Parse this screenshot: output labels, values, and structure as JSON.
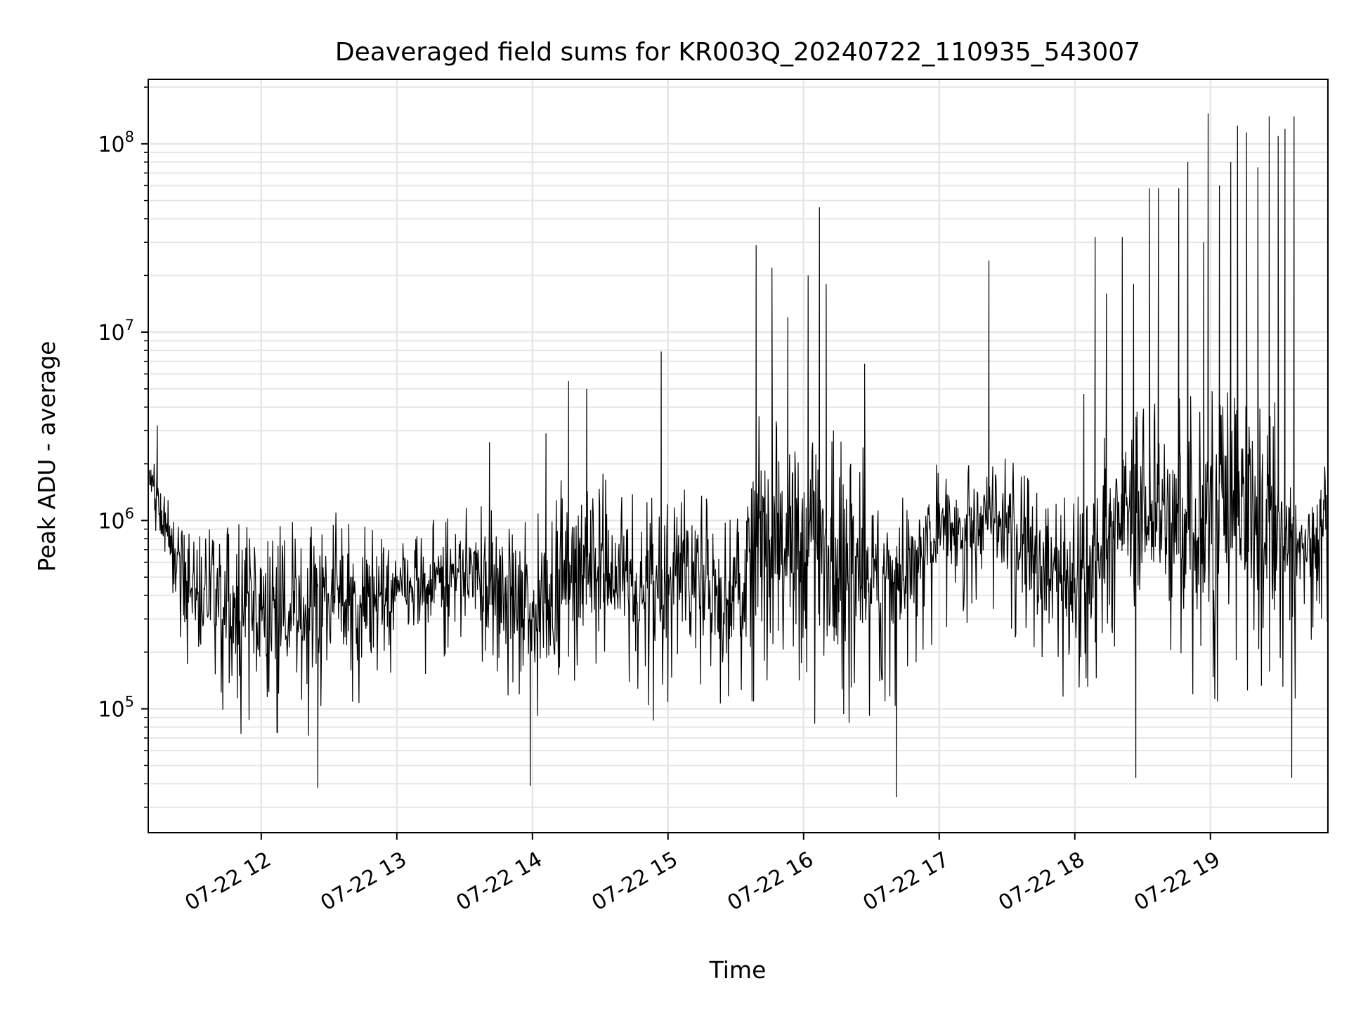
{
  "chart_data": {
    "type": "line",
    "title": "Deaveraged field sums for KR003Q_20240722_110935_543007",
    "xlabel": "Time",
    "ylabel": "Peak ADU - average",
    "yscale": "log",
    "ylim": [
      22000,
      220000000
    ],
    "xlim": [
      "2024-07-22 11:10",
      "2024-07-22 19:52"
    ],
    "grid": "major and minor, light gray",
    "x_ticks": [
      "07-22 12",
      "07-22 13",
      "07-22 14",
      "07-22 15",
      "07-22 16",
      "07-22 17",
      "07-22 18",
      "07-22 19"
    ],
    "y_ticks": [
      {
        "base": "10",
        "exp": "5",
        "value": 100000
      },
      {
        "base": "10",
        "exp": "6",
        "value": 1000000
      },
      {
        "base": "10",
        "exp": "7",
        "value": 10000000
      },
      {
        "base": "10",
        "exp": "8",
        "value": 100000000
      }
    ],
    "line_color": "#000000",
    "series": [
      {
        "x": [
          "2024-07-22 11:10",
          "2024-07-22 11:20",
          "2024-07-22 11:30",
          "2024-07-22 11:40",
          "2024-07-22 11:50",
          "2024-07-22 12:00",
          "2024-07-22 12:10",
          "2024-07-22 12:20",
          "2024-07-22 12:30",
          "2024-07-22 12:40",
          "2024-07-22 12:50",
          "2024-07-22 13:00",
          "2024-07-22 13:10",
          "2024-07-22 13:20",
          "2024-07-22 13:30",
          "2024-07-22 13:40",
          "2024-07-22 13:50",
          "2024-07-22 14:00",
          "2024-07-22 14:10",
          "2024-07-22 14:20",
          "2024-07-22 14:30",
          "2024-07-22 14:40",
          "2024-07-22 14:50",
          "2024-07-22 15:00",
          "2024-07-22 15:10",
          "2024-07-22 15:20",
          "2024-07-22 15:30",
          "2024-07-22 15:40",
          "2024-07-22 15:50",
          "2024-07-22 16:00",
          "2024-07-22 16:10",
          "2024-07-22 16:20",
          "2024-07-22 16:30",
          "2024-07-22 16:40",
          "2024-07-22 16:50",
          "2024-07-22 17:00",
          "2024-07-22 17:10",
          "2024-07-22 17:20",
          "2024-07-22 17:30",
          "2024-07-22 17:40",
          "2024-07-22 17:50",
          "2024-07-22 18:00",
          "2024-07-22 18:10",
          "2024-07-22 18:20",
          "2024-07-22 18:30",
          "2024-07-22 18:40",
          "2024-07-22 18:50",
          "2024-07-22 19:00",
          "2024-07-22 19:10",
          "2024-07-22 19:20",
          "2024-07-22 19:30",
          "2024-07-22 19:40",
          "2024-07-22 19:50"
        ],
        "low": [
          1100000,
          350000,
          120000,
          90000,
          70000,
          80000,
          70000,
          60000,
          120000,
          100000,
          90000,
          150000,
          120000,
          140000,
          200000,
          130000,
          90000,
          60000,
          80000,
          130000,
          110000,
          100000,
          80000,
          90000,
          120000,
          100000,
          90000,
          80000,
          90000,
          80000,
          70000,
          75000,
          90000,
          100000,
          150000,
          250000,
          280000,
          300000,
          250000,
          220000,
          120000,
          100000,
          120000,
          200000,
          180000,
          100000,
          90000,
          100000,
          120000,
          90000,
          80000,
          120000,
          250000
        ],
        "high": [
          2500000,
          1200000,
          1100000,
          1100000,
          1000000,
          1000000,
          1000000,
          1100000,
          1200000,
          1000000,
          900000,
          900000,
          1100000,
          1200000,
          1200000,
          1300000,
          1400000,
          1000000,
          1600000,
          2200000,
          1800000,
          1600000,
          1500000,
          1400000,
          1600000,
          1200000,
          1000000,
          5000000,
          3500000,
          4500000,
          3200000,
          3000000,
          2200000,
          1500000,
          1800000,
          2400000,
          2000000,
          2500000,
          2200000,
          2000000,
          1500000,
          1600000,
          2500000,
          4000000,
          4200000,
          6000000,
          5000000,
          5500000,
          6000000,
          6000000,
          5000000,
          2200000,
          2500000
        ],
        "spikes": [
          {
            "x": "2024-07-22 11:14",
            "y": 3200000
          },
          {
            "x": "2024-07-22 13:41",
            "y": 2600000
          },
          {
            "x": "2024-07-22 14:06",
            "y": 2900000
          },
          {
            "x": "2024-07-22 14:16",
            "y": 5500000
          },
          {
            "x": "2024-07-22 14:24",
            "y": 5000000
          },
          {
            "x": "2024-07-22 14:57",
            "y": 7900000
          },
          {
            "x": "2024-07-22 15:39",
            "y": 29000000
          },
          {
            "x": "2024-07-22 15:46",
            "y": 22000000
          },
          {
            "x": "2024-07-22 15:53",
            "y": 12000000
          },
          {
            "x": "2024-07-22 16:02",
            "y": 20000000
          },
          {
            "x": "2024-07-22 16:07",
            "y": 46000000
          },
          {
            "x": "2024-07-22 16:10",
            "y": 18000000
          },
          {
            "x": "2024-07-22 16:27",
            "y": 6800000
          },
          {
            "x": "2024-07-22 17:22",
            "y": 24000000
          },
          {
            "x": "2024-07-22 18:04",
            "y": 4700000
          },
          {
            "x": "2024-07-22 18:09",
            "y": 32000000
          },
          {
            "x": "2024-07-22 18:14",
            "y": 16000000
          },
          {
            "x": "2024-07-22 18:21",
            "y": 32000000
          },
          {
            "x": "2024-07-22 18:26",
            "y": 18000000
          },
          {
            "x": "2024-07-22 18:33",
            "y": 58000000
          },
          {
            "x": "2024-07-22 18:37",
            "y": 58000000
          },
          {
            "x": "2024-07-22 18:46",
            "y": 58000000
          },
          {
            "x": "2024-07-22 18:50",
            "y": 80000000
          },
          {
            "x": "2024-07-22 18:57",
            "y": 30000000
          },
          {
            "x": "2024-07-22 18:59",
            "y": 145000000
          },
          {
            "x": "2024-07-22 19:04",
            "y": 60000000
          },
          {
            "x": "2024-07-22 19:09",
            "y": 80000000
          },
          {
            "x": "2024-07-22 19:12",
            "y": 125000000
          },
          {
            "x": "2024-07-22 19:16",
            "y": 115000000
          },
          {
            "x": "2024-07-22 19:21",
            "y": 75000000
          },
          {
            "x": "2024-07-22 19:26",
            "y": 140000000
          },
          {
            "x": "2024-07-22 19:30",
            "y": 110000000
          },
          {
            "x": "2024-07-22 19:33",
            "y": 120000000
          },
          {
            "x": "2024-07-22 19:37",
            "y": 140000000
          }
        ],
        "dips": [
          {
            "x": "2024-07-22 12:25",
            "y": 38000
          },
          {
            "x": "2024-07-22 13:59",
            "y": 39000
          },
          {
            "x": "2024-07-22 16:41",
            "y": 34000
          },
          {
            "x": "2024-07-22 18:27",
            "y": 43000
          },
          {
            "x": "2024-07-22 19:36",
            "y": 43000
          }
        ]
      }
    ]
  }
}
